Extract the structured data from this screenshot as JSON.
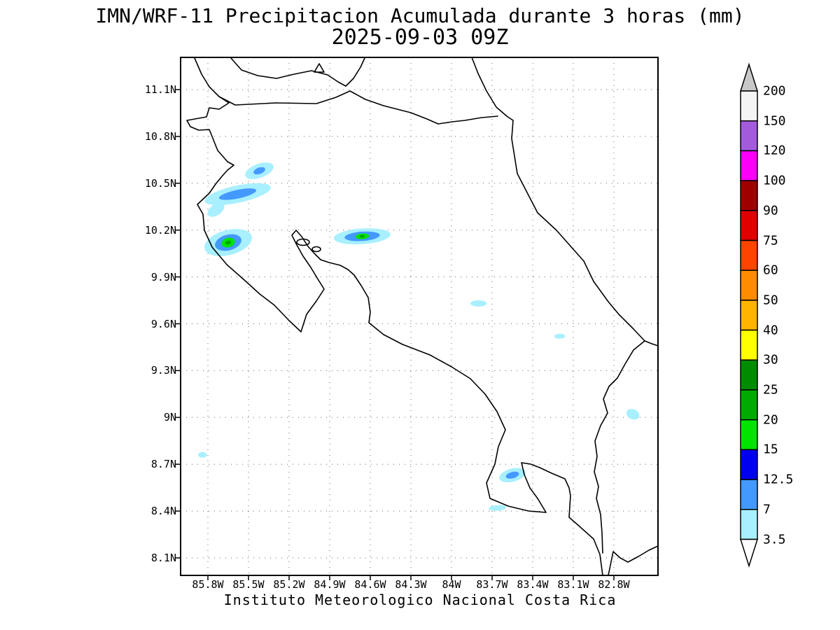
{
  "chart_data": {
    "type": "heatmap",
    "title": "IMN/WRF-11 Precipitacion Acumulada durante 3 horas (mm)",
    "subtitle": "2025-09-03 09Z",
    "footer": "Instituto Meteorologico Nacional Costa Rica",
    "units": "mm",
    "region": "Costa Rica",
    "grid": "dotted",
    "lon_range_deg_w": [
      86.0,
      82.47
    ],
    "lat_range_deg_n": [
      7.99,
      11.31
    ],
    "x_axis": {
      "ticks": [
        {
          "label": "85.8W",
          "lon_w": 85.8
        },
        {
          "label": "85.5W",
          "lon_w": 85.5
        },
        {
          "label": "85.2W",
          "lon_w": 85.2
        },
        {
          "label": "84.9W",
          "lon_w": 84.9
        },
        {
          "label": "84.6W",
          "lon_w": 84.6
        },
        {
          "label": "84.3W",
          "lon_w": 84.3
        },
        {
          "label": "84W",
          "lon_w": 84.0
        },
        {
          "label": "83.7W",
          "lon_w": 83.7
        },
        {
          "label": "83.4W",
          "lon_w": 83.4
        },
        {
          "label": "83.1W",
          "lon_w": 83.1
        },
        {
          "label": "82.8W",
          "lon_w": 82.8
        }
      ]
    },
    "y_axis": {
      "ticks": [
        {
          "label": "11.1N",
          "lat_n": 11.1
        },
        {
          "label": "10.8N",
          "lat_n": 10.8
        },
        {
          "label": "10.5N",
          "lat_n": 10.5
        },
        {
          "label": "10.2N",
          "lat_n": 10.2
        },
        {
          "label": "9.9N",
          "lat_n": 9.9
        },
        {
          "label": "9.6N",
          "lat_n": 9.6
        },
        {
          "label": "9.3N",
          "lat_n": 9.3
        },
        {
          "label": "9N",
          "lat_n": 9.0
        },
        {
          "label": "8.7N",
          "lat_n": 8.7
        },
        {
          "label": "8.4N",
          "lat_n": 8.4
        },
        {
          "label": "8.1N",
          "lat_n": 8.1
        }
      ]
    },
    "colorbar": {
      "levels_mm": [
        3.5,
        7,
        12.5,
        15,
        20,
        25,
        30,
        40,
        50,
        60,
        75,
        90,
        100,
        120,
        150,
        200
      ],
      "labels_top_to_bottom": [
        "200",
        "150",
        "120",
        "100",
        "90",
        "75",
        "60",
        "50",
        "40",
        "30",
        "25",
        "20",
        "15",
        "12.5",
        "7",
        "3.5"
      ],
      "segment_colors_top_to_bottom": [
        "#f4f4f4",
        "#a35bdc",
        "#fa00fa",
        "#9e0000",
        "#e00000",
        "#ff4400",
        "#ff8c00",
        "#ffb400",
        "#ffff00",
        "#008c00",
        "#00aa00",
        "#00e400",
        "#0000f0",
        "#4499ff",
        "#a8efff"
      ],
      "over_arrow_color": "#c8c8c8",
      "under_arrow_color": "#ffffff"
    },
    "precipitation_cells": [
      {
        "id": "guanacaste-north",
        "center_lon_w": 85.42,
        "center_lat_n": 10.58,
        "peak_band_mm": "7-12.5",
        "rings": [
          {
            "mm_min": 3.5,
            "color": "#a8efff",
            "rx_deg": 0.11,
            "ry_deg": 0.045,
            "rot_deg": -20
          },
          {
            "mm_min": 7,
            "color": "#4499ff",
            "rx_deg": 0.045,
            "ry_deg": 0.02,
            "rot_deg": -20
          }
        ]
      },
      {
        "id": "guanacaste-band",
        "center_lon_w": 85.58,
        "center_lat_n": 10.43,
        "peak_band_mm": "7-12.5",
        "rings": [
          {
            "mm_min": 3.5,
            "color": "#a8efff",
            "rx_deg": 0.25,
            "ry_deg": 0.055,
            "rot_deg": -12
          },
          {
            "mm_min": 7,
            "color": "#4499ff",
            "rx_deg": 0.14,
            "ry_deg": 0.028,
            "rot_deg": -12
          }
        ]
      },
      {
        "id": "guanacaste-band-west",
        "center_lon_w": 85.74,
        "center_lat_n": 10.33,
        "peak_band_mm": "3.5-7",
        "rings": [
          {
            "mm_min": 3.5,
            "color": "#a8efff",
            "rx_deg": 0.07,
            "ry_deg": 0.035,
            "rot_deg": -35
          }
        ]
      },
      {
        "id": "nicoya-coast",
        "center_lon_w": 85.65,
        "center_lat_n": 10.12,
        "peak_band_mm": "20-25",
        "rings": [
          {
            "mm_min": 3.5,
            "color": "#a8efff",
            "rx_deg": 0.18,
            "ry_deg": 0.08,
            "rot_deg": -15
          },
          {
            "mm_min": 7,
            "color": "#4499ff",
            "rx_deg": 0.1,
            "ry_deg": 0.05,
            "rot_deg": -15
          },
          {
            "mm_min": 15,
            "color": "#00e400",
            "rx_deg": 0.05,
            "ry_deg": 0.03,
            "rot_deg": -15
          },
          {
            "mm_min": 20,
            "color": "#00aa00",
            "rx_deg": 0.022,
            "ry_deg": 0.013,
            "rot_deg": -15
          }
        ]
      },
      {
        "id": "central-valley",
        "center_lon_w": 84.66,
        "center_lat_n": 10.16,
        "peak_band_mm": "20-25",
        "rings": [
          {
            "mm_min": 3.5,
            "color": "#a8efff",
            "rx_deg": 0.21,
            "ry_deg": 0.05,
            "rot_deg": -4
          },
          {
            "mm_min": 7,
            "color": "#4499ff",
            "rx_deg": 0.13,
            "ry_deg": 0.03,
            "rot_deg": -4
          },
          {
            "mm_min": 15,
            "color": "#00e400",
            "rx_deg": 0.05,
            "ry_deg": 0.018,
            "rot_deg": -4
          },
          {
            "mm_min": 20,
            "color": "#00aa00",
            "rx_deg": 0.02,
            "ry_deg": 0.009,
            "rot_deg": -4
          }
        ]
      },
      {
        "id": "turrialba",
        "center_lon_w": 83.8,
        "center_lat_n": 9.73,
        "peak_band_mm": "3.5-7",
        "rings": [
          {
            "mm_min": 3.5,
            "color": "#a8efff",
            "rx_deg": 0.06,
            "ry_deg": 0.02,
            "rot_deg": 0
          }
        ]
      },
      {
        "id": "talamanca-north",
        "center_lon_w": 83.2,
        "center_lat_n": 9.52,
        "peak_band_mm": "3.5-7",
        "rings": [
          {
            "mm_min": 3.5,
            "color": "#a8efff",
            "rx_deg": 0.04,
            "ry_deg": 0.016,
            "rot_deg": 0
          }
        ]
      },
      {
        "id": "east-border",
        "center_lon_w": 82.66,
        "center_lat_n": 9.02,
        "peak_band_mm": "3.5-7",
        "rings": [
          {
            "mm_min": 3.5,
            "color": "#a8efff",
            "rx_deg": 0.05,
            "ry_deg": 0.032,
            "rot_deg": 25
          }
        ]
      },
      {
        "id": "offshore-west",
        "center_lon_w": 85.84,
        "center_lat_n": 8.76,
        "peak_band_mm": "3.5-7",
        "rings": [
          {
            "mm_min": 3.5,
            "color": "#a8efff",
            "rx_deg": 0.032,
            "ry_deg": 0.018,
            "rot_deg": 0
          }
        ]
      },
      {
        "id": "golfo-dulce",
        "center_lon_w": 83.55,
        "center_lat_n": 8.63,
        "peak_band_mm": "7-12.5",
        "rings": [
          {
            "mm_min": 3.5,
            "color": "#a8efff",
            "rx_deg": 0.1,
            "ry_deg": 0.042,
            "rot_deg": -15
          },
          {
            "mm_min": 7,
            "color": "#4499ff",
            "rx_deg": 0.05,
            "ry_deg": 0.02,
            "rot_deg": -15
          }
        ]
      },
      {
        "id": "osa-south",
        "center_lon_w": 83.66,
        "center_lat_n": 8.42,
        "peak_band_mm": "3.5-7",
        "rings": [
          {
            "mm_min": 3.5,
            "color": "#a8efff",
            "rx_deg": 0.065,
            "ry_deg": 0.018,
            "rot_deg": -5
          }
        ]
      }
    ]
  }
}
